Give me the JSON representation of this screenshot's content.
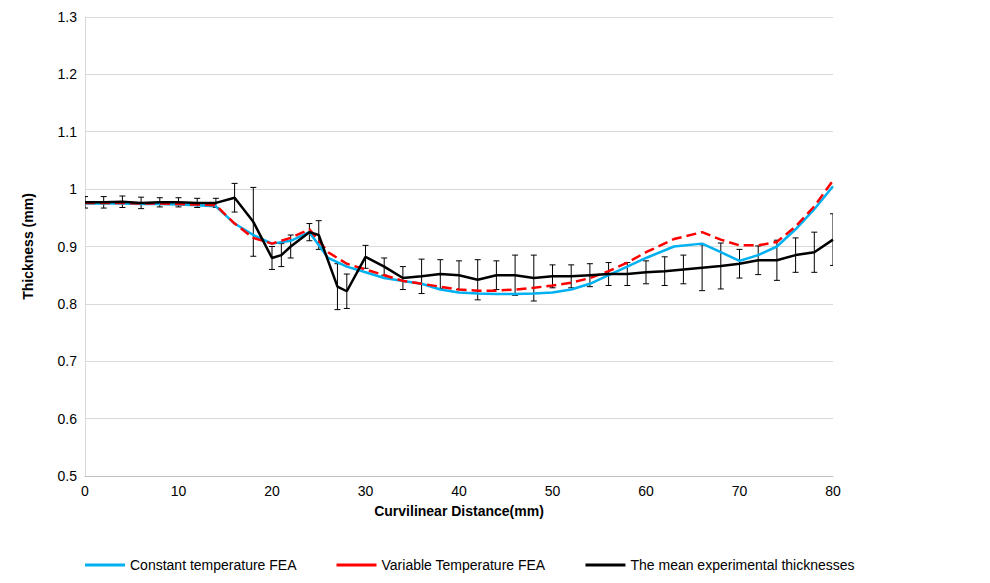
{
  "chart_data": {
    "type": "line",
    "x_label": "Curvilinear Distance(mm)",
    "y_label": "Thickness (mm)",
    "xlim": [
      0,
      80
    ],
    "xticks": [
      0,
      10,
      20,
      30,
      40,
      50,
      60,
      70,
      80
    ],
    "ylim": [
      0.5,
      1.3
    ],
    "yticks": [
      0.5,
      0.6,
      0.7,
      0.8,
      0.9,
      1,
      1.1,
      1.2,
      1.3
    ],
    "grid": true,
    "legend": "bottom",
    "series": [
      {
        "name": "Constant temperature FEA",
        "color": "#00b0f0",
        "line_style": "solid",
        "x": [
          0,
          2,
          4,
          6,
          8,
          10,
          12,
          14,
          16,
          18,
          20,
          22,
          24,
          26,
          28,
          30,
          32,
          34,
          36,
          38,
          40,
          42,
          44,
          46,
          48,
          50,
          52,
          54,
          56,
          58,
          60,
          63,
          66,
          68,
          70,
          72,
          74,
          76,
          78,
          80
        ],
        "values": [
          0.975,
          0.975,
          0.975,
          0.974,
          0.974,
          0.973,
          0.972,
          0.97,
          0.94,
          0.92,
          0.905,
          0.91,
          0.925,
          0.88,
          0.865,
          0.855,
          0.845,
          0.84,
          0.835,
          0.825,
          0.82,
          0.818,
          0.817,
          0.817,
          0.818,
          0.82,
          0.825,
          0.835,
          0.85,
          0.865,
          0.88,
          0.9,
          0.905,
          0.89,
          0.875,
          0.885,
          0.9,
          0.93,
          0.965,
          1.005
        ]
      },
      {
        "name": "Variable Temperature FEA",
        "color": "#ff0000",
        "line_style": "dashed",
        "x": [
          0,
          2,
          4,
          6,
          8,
          10,
          12,
          14,
          16,
          18,
          20,
          22,
          24,
          26,
          28,
          30,
          32,
          34,
          36,
          38,
          40,
          42,
          44,
          46,
          48,
          50,
          52,
          54,
          56,
          58,
          60,
          63,
          66,
          68,
          70,
          72,
          74,
          76,
          78,
          80
        ],
        "values": [
          0.976,
          0.976,
          0.976,
          0.975,
          0.975,
          0.974,
          0.973,
          0.972,
          0.94,
          0.915,
          0.905,
          0.915,
          0.93,
          0.89,
          0.87,
          0.86,
          0.85,
          0.84,
          0.835,
          0.83,
          0.825,
          0.823,
          0.823,
          0.825,
          0.828,
          0.832,
          0.837,
          0.845,
          0.857,
          0.872,
          0.89,
          0.913,
          0.925,
          0.912,
          0.902,
          0.902,
          0.908,
          0.935,
          0.97,
          1.015
        ]
      },
      {
        "name": "The mean experimental thicknesses",
        "color": "#000000",
        "line_style": "solid",
        "x": [
          0,
          2,
          4,
          6,
          8,
          10,
          12,
          14,
          16,
          18,
          20,
          21,
          22,
          24,
          25,
          27,
          28,
          30,
          32,
          34,
          36,
          38,
          40,
          42,
          44,
          46,
          48,
          50,
          52,
          54,
          56,
          58,
          60,
          62,
          64,
          66,
          68,
          70,
          72,
          74,
          76,
          78,
          80
        ],
        "values": [
          0.977,
          0.977,
          0.978,
          0.976,
          0.977,
          0.977,
          0.976,
          0.976,
          0.985,
          0.943,
          0.88,
          0.885,
          0.9,
          0.925,
          0.92,
          0.83,
          0.822,
          0.882,
          0.865,
          0.845,
          0.848,
          0.852,
          0.85,
          0.842,
          0.85,
          0.85,
          0.845,
          0.848,
          0.848,
          0.85,
          0.852,
          0.852,
          0.855,
          0.857,
          0.86,
          0.863,
          0.866,
          0.87,
          0.876,
          0.876,
          0.885,
          0.89,
          0.912
        ],
        "errors": [
          0.01,
          0.01,
          0.01,
          0.01,
          0.008,
          0.008,
          0.008,
          0.008,
          0.025,
          0.06,
          0.02,
          0.02,
          0.02,
          0.015,
          0.025,
          0.04,
          0.03,
          0.02,
          0.015,
          0.02,
          0.03,
          0.025,
          0.025,
          0.035,
          0.025,
          0.035,
          0.04,
          0.02,
          0.02,
          0.02,
          0.02,
          0.02,
          0.02,
          0.025,
          0.025,
          0.04,
          0.04,
          0.025,
          0.025,
          0.035,
          0.03,
          0.035,
          0.045
        ]
      }
    ]
  }
}
